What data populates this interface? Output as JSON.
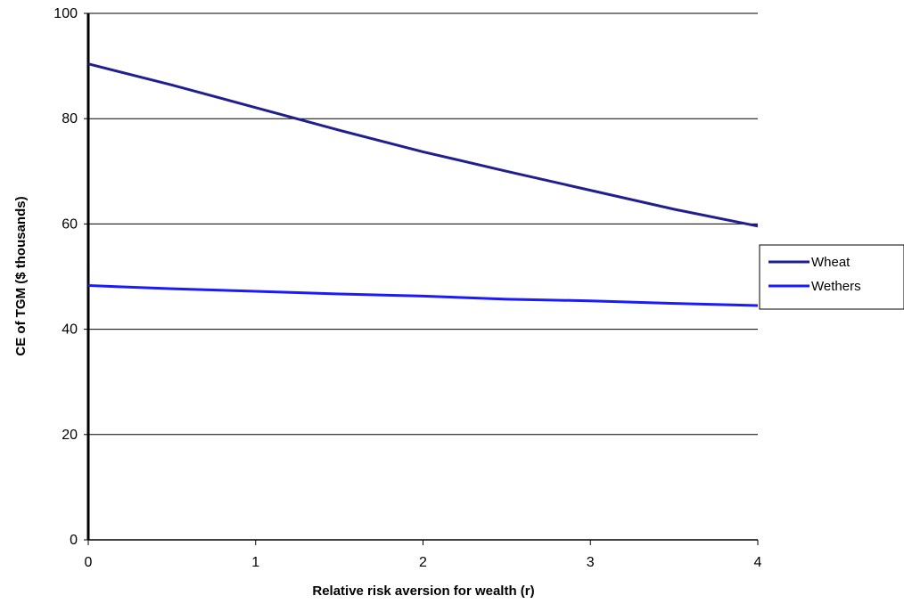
{
  "chart_data": {
    "type": "line",
    "title": "",
    "xlabel": "Relative risk aversion for wealth (r)",
    "ylabel": "CE of TGM ($ thousands)",
    "xlim": [
      0,
      4
    ],
    "ylim": [
      0,
      100
    ],
    "xticks": [
      "0",
      "1",
      "2",
      "3",
      "4"
    ],
    "yticks": [
      "0",
      "20",
      "40",
      "60",
      "80",
      "100"
    ],
    "grid": "horizontal",
    "legend_position": "right",
    "x": [
      0,
      0.5,
      1,
      1.5,
      2,
      2.5,
      3,
      3.5,
      4
    ],
    "series": [
      {
        "name": "Wheat",
        "color": "#1f1f8f",
        "values": [
          90.4,
          86.4,
          82.1,
          77.8,
          73.7,
          70.0,
          66.4,
          62.8,
          59.6
        ]
      },
      {
        "name": "Wethers",
        "color": "#1a1aff",
        "values": [
          48.3,
          47.7,
          47.2,
          46.7,
          46.3,
          45.7,
          45.4,
          44.9,
          44.5
        ]
      }
    ]
  }
}
